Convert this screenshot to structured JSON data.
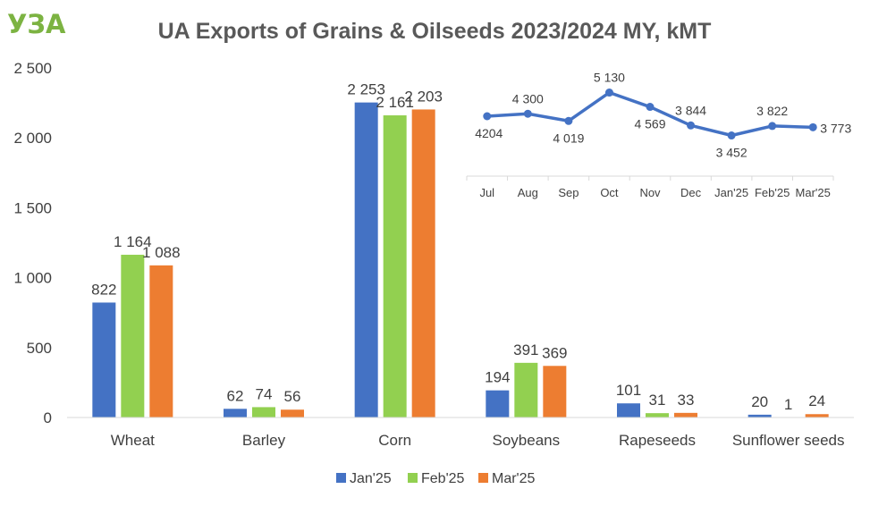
{
  "logo": {
    "text": "УЗА"
  },
  "colors": {
    "series": [
      "#4472C4",
      "#92D050",
      "#ED7D31"
    ],
    "line": "#4472C4",
    "logo": "#7CB342",
    "axis": "#D9D9D9",
    "text": "#404040"
  },
  "chart_data": [
    {
      "type": "bar",
      "title": "UA Exports of Grains & Oilseeds 2023/2024 MY, kMT",
      "categories": [
        "Wheat",
        "Barley",
        "Corn",
        "Soybeans",
        "Rapeseeds",
        "Sunflower seeds"
      ],
      "series": [
        {
          "name": "Jan'25",
          "values": [
            822,
            62,
            2253,
            194,
            101,
            20
          ],
          "labels": [
            "822",
            "62",
            "2 253",
            "194",
            "101",
            "20"
          ]
        },
        {
          "name": "Feb'25",
          "values": [
            1164,
            74,
            2161,
            391,
            31,
            1
          ],
          "labels": [
            "1 164",
            "74",
            "2 161",
            "391",
            "31",
            "1"
          ]
        },
        {
          "name": "Mar'25",
          "values": [
            1088,
            56,
            2203,
            369,
            33,
            24
          ],
          "labels": [
            "1 088",
            "56",
            "2 203",
            "369",
            "33",
            "24"
          ]
        }
      ],
      "ylim": [
        0,
        2500
      ],
      "yticks": [
        0,
        500,
        1000,
        1500,
        2000,
        2500
      ],
      "ytick_labels": [
        "0",
        "500",
        "1 000",
        "1 500",
        "2 000",
        "2 500"
      ],
      "grid": false,
      "legend": "bottom"
    },
    {
      "type": "line",
      "categories": [
        "Jul",
        "Aug",
        "Sep",
        "Oct",
        "Nov",
        "Dec",
        "Jan'25",
        "Feb'25",
        "Mar'25"
      ],
      "values": [
        4204,
        4300,
        4019,
        5130,
        4569,
        3844,
        3452,
        3822,
        3773
      ],
      "labels": [
        "4204",
        "4 300",
        "4 019",
        "5 130",
        "4 569",
        "3 844",
        "3 452",
        "3 822",
        "3 773"
      ],
      "label_positions": [
        "below",
        "above",
        "below",
        "above",
        "below",
        "above",
        "below",
        "above",
        "right"
      ],
      "grid": false,
      "legend": "none"
    }
  ]
}
